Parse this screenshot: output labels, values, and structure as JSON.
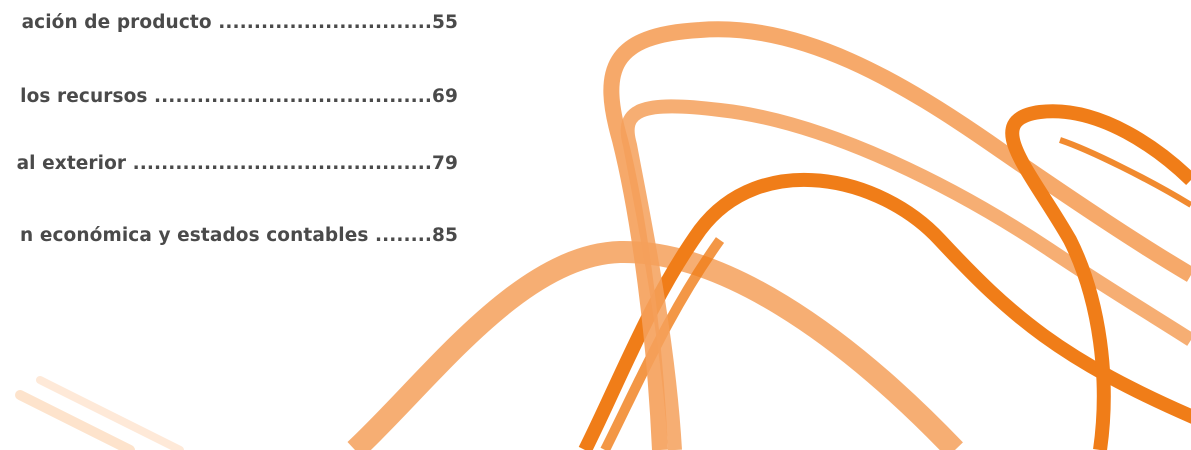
{
  "colors": {
    "text": "#4a4a4a",
    "swoosh_dark": "#f07d18",
    "swoosh_light": "#f5a05a",
    "swoosh_faint": "#fde3cc"
  },
  "toc": {
    "entries": [
      {
        "title": "ación de producto",
        "leader": " ..............................",
        "page": "55"
      },
      {
        "title": "los recursos",
        "leader": " .......................................",
        "page": "69"
      },
      {
        "title": "al exterior",
        "leader": " ..........................................",
        "page": "79"
      },
      {
        "title": "n económica y estados contables",
        "leader": " ........",
        "page": "85"
      }
    ]
  }
}
